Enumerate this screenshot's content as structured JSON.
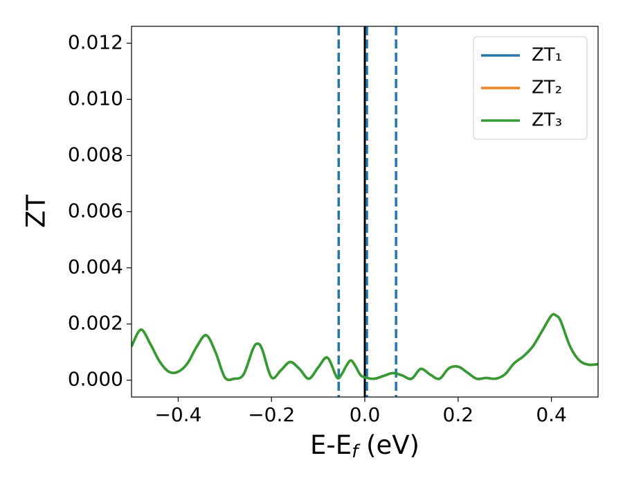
{
  "chart_data": {
    "type": "line",
    "xlabel": [
      "E-E",
      "f",
      " (eV)"
    ],
    "ylabel": "ZT",
    "x": [
      -0.5,
      -0.48,
      -0.46,
      -0.44,
      -0.42,
      -0.4,
      -0.38,
      -0.36,
      -0.34,
      -0.32,
      -0.3,
      -0.28,
      -0.26,
      -0.24,
      -0.23,
      -0.22,
      -0.2,
      -0.18,
      -0.16,
      -0.14,
      -0.12,
      -0.1,
      -0.08,
      -0.06,
      -0.05,
      -0.04,
      -0.03,
      -0.02,
      -0.01,
      0.0,
      0.02,
      0.04,
      0.06,
      0.08,
      0.1,
      0.12,
      0.14,
      0.16,
      0.18,
      0.2,
      0.22,
      0.24,
      0.26,
      0.28,
      0.3,
      0.32,
      0.34,
      0.36,
      0.38,
      0.4,
      0.41,
      0.42,
      0.44,
      0.46,
      0.48,
      0.5
    ],
    "series": [
      {
        "name": "ZT₁",
        "color": "#1f77b4",
        "values": [
          0.0012,
          0.0018,
          0.0013,
          0.00067,
          0.0003,
          0.0003,
          0.0006,
          0.0012,
          0.0016,
          0.001,
          0.0001,
          5e-05,
          0.0002,
          0.0011,
          0.0013,
          0.0011,
          0.0001,
          0.00035,
          0.00065,
          0.0004,
          5e-05,
          0.00045,
          0.0008,
          0.0001,
          0.0002,
          0.0005,
          0.0007,
          0.0005,
          0.0002,
          0.0001,
          5e-05,
          0.00015,
          0.00025,
          0.00017,
          5e-05,
          0.0004,
          0.0002,
          5e-05,
          0.00042,
          0.00048,
          0.00027,
          5e-05,
          8e-05,
          5e-05,
          0.0002,
          0.0006,
          0.00085,
          0.0012,
          0.00175,
          0.0023,
          0.0023,
          0.0021,
          0.0012,
          0.0007,
          0.00055,
          0.00057
        ]
      },
      {
        "name": "ZT₂",
        "color": "#ff7f0e",
        "values": [
          0.0012,
          0.0018,
          0.0013,
          0.00067,
          0.0003,
          0.0003,
          0.0006,
          0.0012,
          0.0016,
          0.001,
          0.0001,
          5e-05,
          0.0002,
          0.0011,
          0.0013,
          0.0011,
          0.0001,
          0.00035,
          0.00065,
          0.0004,
          5e-05,
          0.00045,
          0.0008,
          0.0001,
          0.0002,
          0.0005,
          0.0007,
          0.0005,
          0.0002,
          0.0001,
          5e-05,
          0.00015,
          0.00025,
          0.00017,
          5e-05,
          0.0004,
          0.0002,
          5e-05,
          0.00042,
          0.00048,
          0.00027,
          5e-05,
          8e-05,
          5e-05,
          0.0002,
          0.0006,
          0.00085,
          0.0012,
          0.00175,
          0.0023,
          0.0023,
          0.0021,
          0.0012,
          0.0007,
          0.00055,
          0.00057
        ]
      },
      {
        "name": "ZT₃",
        "color": "#2ca02c",
        "values": [
          0.0012,
          0.0018,
          0.0013,
          0.00067,
          0.0003,
          0.0003,
          0.0006,
          0.0012,
          0.0016,
          0.001,
          0.0001,
          5e-05,
          0.0002,
          0.0011,
          0.0013,
          0.0011,
          0.0001,
          0.00035,
          0.00065,
          0.0004,
          5e-05,
          0.00045,
          0.0008,
          0.0001,
          0.0002,
          0.0005,
          0.0007,
          0.0005,
          0.0002,
          0.0001,
          5e-05,
          0.00015,
          0.00025,
          0.00017,
          5e-05,
          0.0004,
          0.0002,
          5e-05,
          0.00042,
          0.00048,
          0.00027,
          5e-05,
          8e-05,
          5e-05,
          0.0002,
          0.0006,
          0.00085,
          0.0012,
          0.00175,
          0.0023,
          0.0023,
          0.0021,
          0.0012,
          0.0007,
          0.00055,
          0.00057
        ]
      }
    ],
    "vlines": [
      {
        "x": 0,
        "color": "#000000",
        "style": "solid"
      },
      {
        "x": -0.056,
        "color": "#1f77b4",
        "style": "dashed"
      },
      {
        "x": 0.0045,
        "color": "#1f77b4",
        "style": "dashed"
      },
      {
        "x": 0.067,
        "color": "#1f77b4",
        "style": "dashed"
      }
    ],
    "xlim": [
      -0.5,
      0.5
    ],
    "ylim": [
      -0.0006,
      0.0126
    ],
    "xticks": [
      {
        "value": -0.4,
        "label": "−0.4"
      },
      {
        "value": -0.2,
        "label": "−0.2"
      },
      {
        "value": 0,
        "label": "0.0"
      },
      0.2,
      0.4
    ],
    "yticks": [
      {
        "value": 0,
        "label": "0.000"
      },
      {
        "value": 0.002,
        "label": "0.002"
      },
      {
        "value": 0.004,
        "label": "0.004"
      },
      {
        "value": 0.006,
        "label": "0.006"
      },
      {
        "value": 0.008,
        "label": "0.008"
      },
      {
        "value": 0.01,
        "label": "0.010"
      },
      {
        "value": 0.012,
        "label": "0.012"
      }
    ],
    "grid": false,
    "legend": "upper right"
  }
}
